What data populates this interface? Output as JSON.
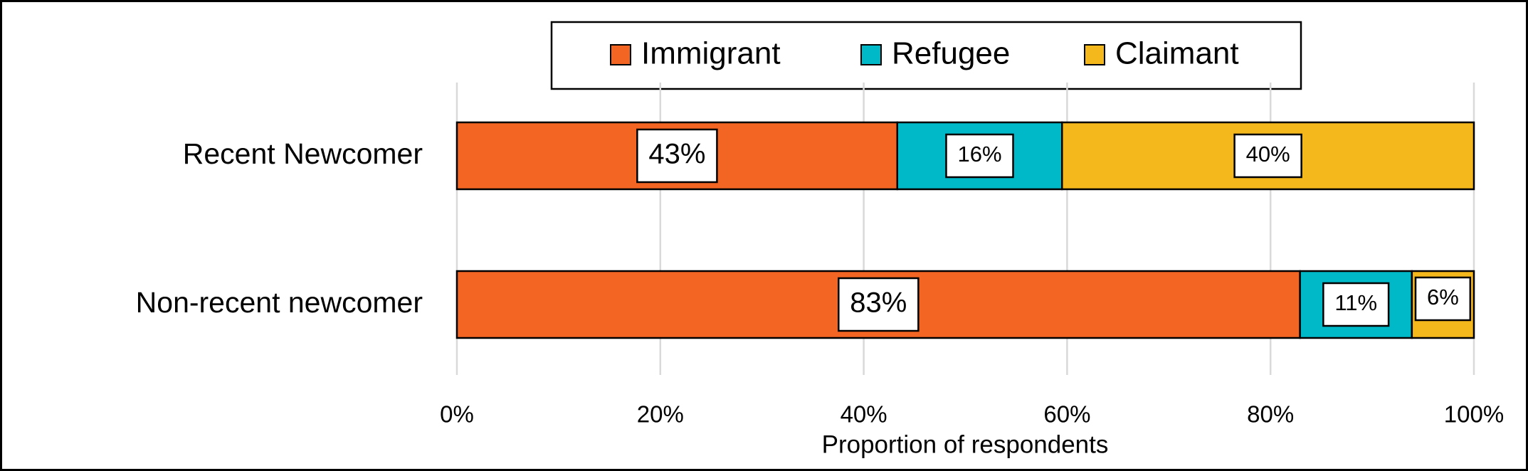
{
  "chart_data": {
    "type": "stacked-bar-horizontal",
    "x_label": "Proportion of respondents",
    "categories": [
      "Recent Newcomer",
      "Non-recent newcomer"
    ],
    "series": [
      {
        "name": "Immigrant",
        "color": "#f26522",
        "values": [
          43.3,
          82.9
        ],
        "value_labels": [
          "43%",
          "83%"
        ]
      },
      {
        "name": "Refugee",
        "color": "#00b9c8",
        "values": [
          16.2,
          11.0
        ],
        "value_labels": [
          "16%",
          "11%"
        ]
      },
      {
        "name": "Claimant",
        "color": "#f5b81c",
        "values": [
          40.5,
          6.1
        ],
        "value_labels": [
          "40%",
          "6%"
        ]
      }
    ],
    "xlim": [
      0,
      100
    ],
    "xticks": [
      {
        "value": 0,
        "label": "0%"
      },
      {
        "value": 20,
        "label": "20%"
      },
      {
        "value": 40,
        "label": "40%"
      },
      {
        "value": 60,
        "label": "60%"
      },
      {
        "value": 80,
        "label": "80%"
      },
      {
        "value": 100,
        "label": "100%"
      }
    ],
    "grid": true,
    "legend": "top"
  }
}
